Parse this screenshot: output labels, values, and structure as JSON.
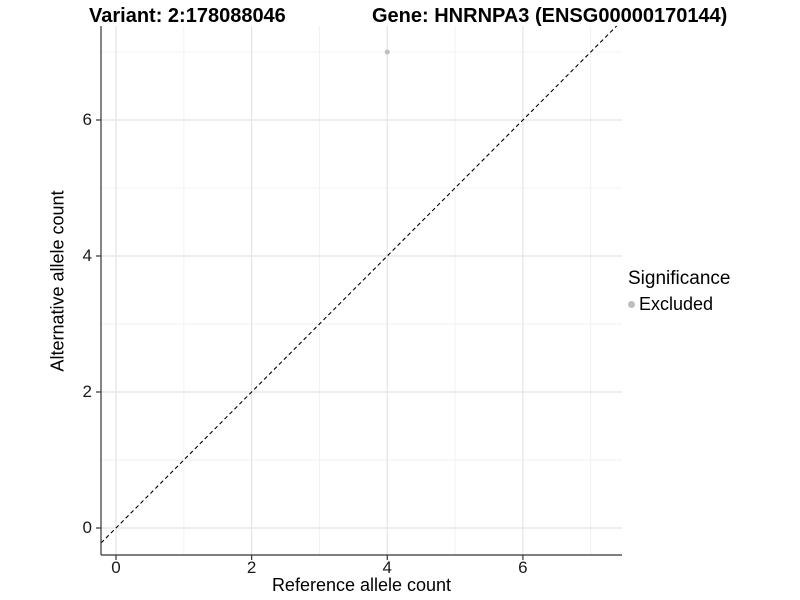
{
  "chart_data": {
    "type": "scatter",
    "title_variant": "Variant: 2:178088046",
    "title_gene": "Gene: HNRNPA3 (ENSG00000170144)",
    "xlabel": "Reference allele count",
    "ylabel": "Alternative allele count",
    "xlim": [
      -0.221,
      7.461
    ],
    "ylim": [
      -0.397,
      7.382
    ],
    "x_major_ticks": [
      0,
      2,
      4,
      6
    ],
    "y_major_ticks": [
      0,
      2,
      4,
      6
    ],
    "x_minor_ticks": [
      1,
      3,
      5,
      7
    ],
    "y_minor_ticks": [
      1,
      3,
      5,
      7
    ],
    "grid": true,
    "reference_line": {
      "type": "identity y=x",
      "style": "dashed",
      "color": "#000000"
    },
    "series": [
      {
        "name": "Excluded",
        "color": "#bebebe",
        "points": [
          {
            "x": 4,
            "y": 7
          }
        ]
      }
    ],
    "legend": {
      "title": "Significance",
      "position": "right",
      "items": [
        {
          "label": "Excluded",
          "color": "#bebebe"
        }
      ]
    },
    "colors": {
      "background": "#ffffff",
      "grid_major": "#e4e4e4",
      "grid_minor": "#f0f0f0",
      "axis_line": "#333333",
      "tick_mark": "#333333",
      "text": "#000000"
    }
  }
}
